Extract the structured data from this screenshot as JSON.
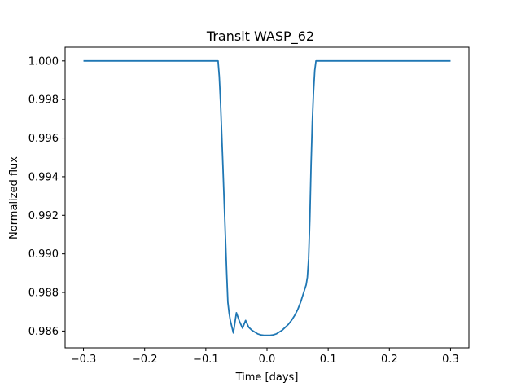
{
  "chart_data": {
    "type": "line",
    "title": "Transit WASP_62",
    "xlabel": "Time [days]",
    "ylabel": "Normalized flux",
    "xlim": [
      -0.33,
      0.33
    ],
    "ylim": [
      0.98513,
      1.00071
    ],
    "x_ticks": [
      -0.3,
      -0.2,
      -0.1,
      0.0,
      0.1,
      0.2,
      0.3
    ],
    "x_tick_labels": [
      "−0.3",
      "−0.2",
      "−0.1",
      "0.0",
      "0.1",
      "0.2",
      "0.3"
    ],
    "y_ticks": [
      0.986,
      0.988,
      0.99,
      0.992,
      0.994,
      0.996,
      0.998,
      1.0
    ],
    "y_tick_labels": [
      "0.986",
      "0.988",
      "0.990",
      "0.992",
      "0.994",
      "0.996",
      "0.998",
      "1.000"
    ],
    "grid": false,
    "series": [
      {
        "color": "#1f77b4",
        "x": [
          -0.3,
          -0.08,
          -0.078,
          -0.076,
          -0.074,
          -0.072,
          -0.07,
          -0.068,
          -0.066,
          -0.064,
          -0.062,
          -0.06,
          -0.055,
          -0.05,
          -0.045,
          -0.04,
          -0.035,
          -0.03,
          -0.025,
          -0.02,
          -0.015,
          -0.01,
          -0.005,
          0.0,
          0.005,
          0.01,
          0.015,
          0.02,
          0.025,
          0.03,
          0.035,
          0.04,
          0.045,
          0.05,
          0.055,
          0.06,
          0.062,
          0.064,
          0.066,
          0.068,
          0.07,
          0.072,
          0.074,
          0.076,
          0.078,
          0.08,
          0.3
        ],
        "y": [
          1.0,
          1.0,
          0.9992,
          0.9979,
          0.9962,
          0.9945,
          0.9927,
          0.9909,
          0.9891,
          0.9875,
          0.98695,
          0.98655,
          0.9859,
          0.98695,
          0.9865,
          0.98615,
          0.98655,
          0.9862,
          0.98605,
          0.98595,
          0.98585,
          0.9858,
          0.98578,
          0.98578,
          0.98578,
          0.9858,
          0.98585,
          0.98595,
          0.98605,
          0.9862,
          0.98635,
          0.98655,
          0.9868,
          0.9871,
          0.9875,
          0.988,
          0.9882,
          0.9884,
          0.9888,
          0.98975,
          0.9918,
          0.9946,
          0.9968,
          0.9984,
          0.9995,
          1.0,
          1.0
        ]
      }
    ]
  }
}
